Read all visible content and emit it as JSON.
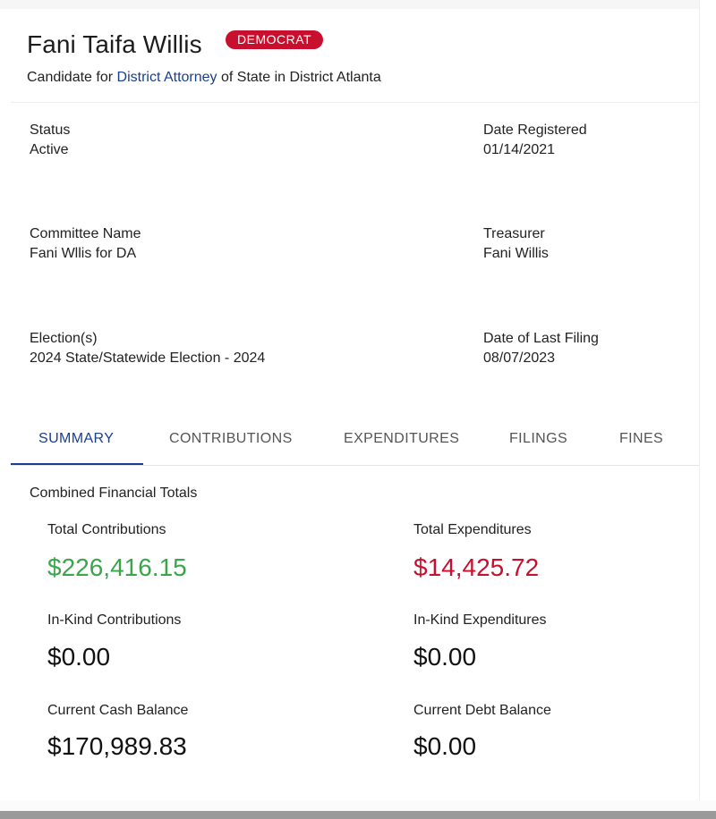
{
  "candidate": {
    "name": "Fani Taifa Willis",
    "party": "DEMOCRAT",
    "subline_prefix": "Candidate for ",
    "office": "District Attorney",
    "subline_suffix": " of State in District Atlanta"
  },
  "details": {
    "status_label": "Status",
    "status_value": "Active",
    "date_registered_label": "Date Registered",
    "date_registered_value": "01/14/2021",
    "committee_label": "Committee Name",
    "committee_value": "Fani Wllis for DA",
    "treasurer_label": "Treasurer",
    "treasurer_value": "Fani Willis",
    "elections_label": "Election(s)",
    "elections_value": "2024 State/Statewide Election - 2024",
    "last_filing_label": "Date of Last Filing",
    "last_filing_value": "08/07/2023"
  },
  "tabs": [
    {
      "label": "SUMMARY",
      "active": true
    },
    {
      "label": "CONTRIBUTIONS",
      "active": false
    },
    {
      "label": "EXPENDITURES",
      "active": false
    },
    {
      "label": "FILINGS",
      "active": false
    },
    {
      "label": "FINES",
      "active": false
    }
  ],
  "summary": {
    "title": "Combined Financial Totals",
    "total_contributions_label": "Total Contributions",
    "total_contributions_value": "$226,416.15",
    "total_expenditures_label": "Total Expenditures",
    "total_expenditures_value": "$14,425.72",
    "inkind_contributions_label": "In-Kind Contributions",
    "inkind_contributions_value": "$0.00",
    "inkind_expenditures_label": "In-Kind Expenditures",
    "inkind_expenditures_value": "$0.00",
    "cash_balance_label": "Current Cash Balance",
    "cash_balance_value": "$170,989.83",
    "debt_balance_label": "Current Debt Balance",
    "debt_balance_value": "$0.00"
  },
  "colors": {
    "accent": "#1a3f8f",
    "party_badge": "#c8102e",
    "positive": "#3aa54a",
    "negative": "#c8102e"
  }
}
